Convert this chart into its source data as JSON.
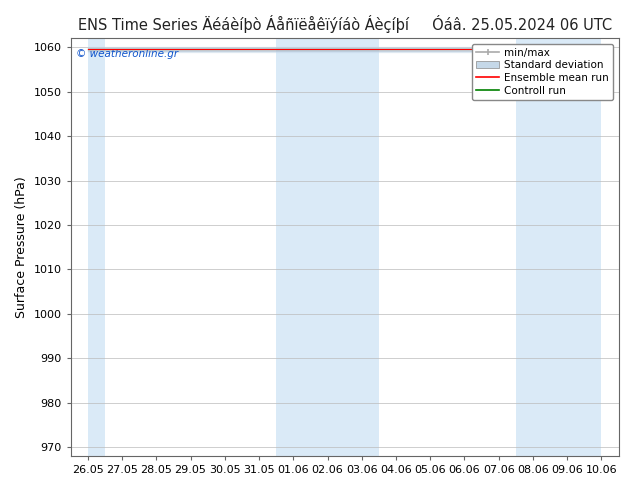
{
  "title": "ENS Time Series Äéáèíþò Áåñïëåêïýíáò Áèçíþí",
  "title_right": "Óáâ. 25.05.2024 06 UTC",
  "ylabel": "Surface Pressure (hPa)",
  "ylim": [
    968,
    1062
  ],
  "yticks": [
    970,
    980,
    990,
    1000,
    1010,
    1020,
    1030,
    1040,
    1050,
    1060
  ],
  "x_labels": [
    "26.05",
    "27.05",
    "28.05",
    "29.05",
    "30.05",
    "31.05",
    "01.06",
    "02.06",
    "03.06",
    "04.06",
    "05.06",
    "06.06",
    "07.06",
    "08.06",
    "09.06",
    "10.06"
  ],
  "num_ticks": 16,
  "watermark": "© weatheronline.gr",
  "legend_labels": [
    "min/max",
    "Standard deviation",
    "Ensemble mean run",
    "Controll run"
  ],
  "bg_color": "#ffffff",
  "band_color": "#daeaf7",
  "shaded_indices": [
    0,
    6,
    7,
    8,
    13,
    14,
    15
  ],
  "mean_value": 1059.5,
  "std_value": 0.3,
  "min_value": 1059.0,
  "max_value": 1060.0,
  "control_value": 1059.5,
  "title_fontsize": 10.5,
  "axis_label_fontsize": 9,
  "tick_fontsize": 8
}
